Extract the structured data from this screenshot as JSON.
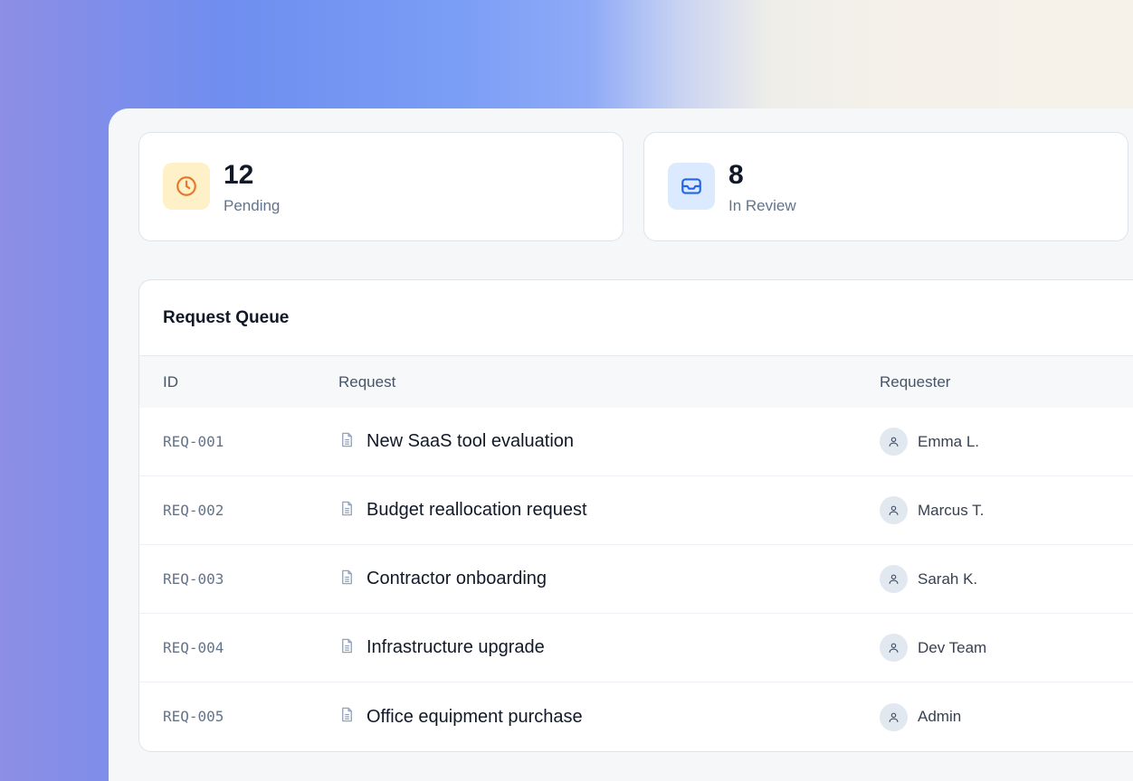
{
  "stats": [
    {
      "value": "12",
      "label": "Pending",
      "icon": "clock-icon",
      "icon_color": "#e8772e",
      "icon_bg": "#fef0c7"
    },
    {
      "value": "8",
      "label": "In Review",
      "icon": "inbox-icon",
      "icon_color": "#2563eb",
      "icon_bg": "#dbeafe"
    }
  ],
  "queue": {
    "title": "Request Queue",
    "columns": [
      "ID",
      "Request",
      "Requester"
    ],
    "rows": [
      {
        "id": "REQ-001",
        "request": "New SaaS tool evaluation",
        "requester": "Emma L."
      },
      {
        "id": "REQ-002",
        "request": "Budget reallocation request",
        "requester": "Marcus T."
      },
      {
        "id": "REQ-003",
        "request": "Contractor onboarding",
        "requester": "Sarah K."
      },
      {
        "id": "REQ-004",
        "request": "Infrastructure upgrade",
        "requester": "Dev Team"
      },
      {
        "id": "REQ-005",
        "request": "Office equipment purchase",
        "requester": "Admin"
      }
    ]
  }
}
